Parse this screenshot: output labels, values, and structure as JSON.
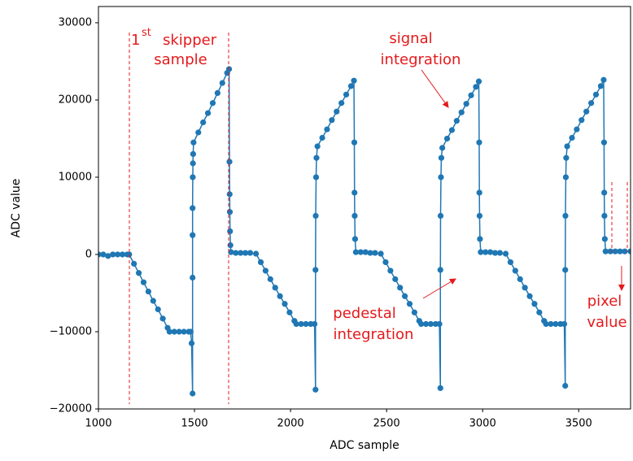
{
  "chart_data": {
    "type": "line",
    "xlabel": "ADC sample",
    "ylabel": "ADC value",
    "xlim": [
      1000,
      3770
    ],
    "ylim": [
      -20000,
      32100
    ],
    "xticks": [
      1000,
      1500,
      2000,
      2500,
      3000,
      3500
    ],
    "yticks": [
      {
        "value": -20000,
        "label": "−20000"
      },
      {
        "value": -10000,
        "label": "−10000"
      },
      0,
      10000,
      20000,
      30000
    ],
    "annotations": [
      "1",
      "st",
      "skipper",
      "sample",
      "signal",
      "integration",
      "pedestal",
      "integration",
      "pixel",
      "value"
    ],
    "x": [
      1000,
      1025,
      1050,
      1075,
      1100,
      1125,
      1150,
      1160,
      1185,
      1210,
      1235,
      1260,
      1285,
      1310,
      1335,
      1360,
      1370,
      1395,
      1420,
      1445,
      1470,
      1480,
      1485,
      1490,
      1490,
      1490,
      1490,
      1491,
      1492,
      1493,
      1495,
      1520,
      1545,
      1570,
      1595,
      1620,
      1645,
      1670,
      1680,
      1682,
      1683,
      1684,
      1685,
      1687,
      1690,
      1715,
      1740,
      1765,
      1790,
      1820,
      1845,
      1870,
      1895,
      1920,
      1945,
      1970,
      1995,
      2020,
      2030,
      2055,
      2080,
      2105,
      2125,
      2130,
      2130,
      2131,
      2133,
      2135,
      2140,
      2165,
      2190,
      2215,
      2240,
      2265,
      2290,
      2315,
      2330,
      2332,
      2333,
      2334,
      2336,
      2340,
      2365,
      2390,
      2415,
      2440,
      2470,
      2495,
      2520,
      2545,
      2570,
      2595,
      2620,
      2645,
      2670,
      2680,
      2705,
      2730,
      2755,
      2775,
      2780,
      2780,
      2781,
      2783,
      2785,
      2790,
      2815,
      2840,
      2865,
      2890,
      2915,
      2940,
      2965,
      2980,
      2982,
      2983,
      2984,
      2986,
      2990,
      3015,
      3040,
      3065,
      3090,
      3120,
      3145,
      3170,
      3195,
      3220,
      3245,
      3270,
      3295,
      3320,
      3330,
      3355,
      3380,
      3405,
      3425,
      3430,
      3430,
      3431,
      3433,
      3435,
      3440,
      3465,
      3490,
      3515,
      3540,
      3565,
      3590,
      3615,
      3630,
      3632,
      3633,
      3634,
      3636,
      3640,
      3665,
      3690,
      3715,
      3740,
      3770
    ],
    "series": [
      {
        "name": "ADC",
        "color": "#1f77b4",
        "values": [
          0,
          0,
          -200,
          0,
          0,
          0,
          0,
          0,
          -1200,
          -2400,
          -3600,
          -4800,
          -6000,
          -7100,
          -8300,
          -9500,
          -10000,
          -10000,
          -10000,
          -10000,
          -10000,
          -10000,
          -11500,
          -18000,
          -3000,
          2500,
          6000,
          10000,
          11800,
          13000,
          14500,
          15800,
          17100,
          18300,
          19600,
          20900,
          22200,
          23500,
          24000,
          12000,
          7800,
          5500,
          3000,
          1200,
          300,
          200,
          200,
          200,
          200,
          100,
          -1000,
          -2100,
          -3200,
          -4300,
          -5400,
          -6400,
          -7500,
          -8600,
          -9000,
          -9000,
          -9000,
          -9000,
          -9000,
          -17500,
          -2000,
          5000,
          10000,
          12500,
          14000,
          15100,
          16200,
          17400,
          18500,
          19600,
          20700,
          21800,
          22500,
          14500,
          8000,
          5000,
          2000,
          300,
          300,
          300,
          200,
          200,
          100,
          -1000,
          -2100,
          -3200,
          -4300,
          -5400,
          -6400,
          -7500,
          -8600,
          -9000,
          -9000,
          -9000,
          -9000,
          -9000,
          -17300,
          -2000,
          5000,
          10000,
          12500,
          13800,
          15000,
          16100,
          17300,
          18400,
          19500,
          20600,
          21700,
          22400,
          14500,
          8000,
          5000,
          2000,
          300,
          300,
          300,
          200,
          200,
          100,
          -1000,
          -2100,
          -3200,
          -4300,
          -5400,
          -6400,
          -7500,
          -8600,
          -9000,
          -9000,
          -9000,
          -9000,
          -9000,
          -17000,
          -2000,
          5000,
          10000,
          12500,
          14000,
          15100,
          16200,
          17400,
          18500,
          19600,
          20700,
          21800,
          22600,
          14500,
          8000,
          5000,
          2000,
          400,
          400,
          400,
          400,
          400,
          400
        ]
      }
    ]
  }
}
